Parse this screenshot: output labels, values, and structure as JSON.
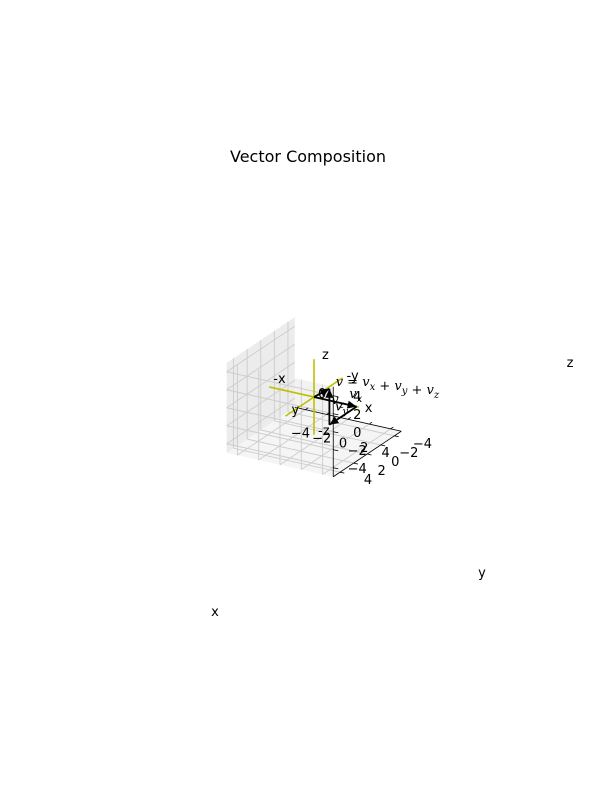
{
  "chart_data": {
    "type": "3d-vector",
    "title": "Vector Composition",
    "xlabel": "x",
    "ylabel": "y",
    "zlabel": "z",
    "xlim": [
      -5,
      5
    ],
    "ylim": [
      -5,
      5
    ],
    "zlim": [
      -5,
      5
    ],
    "xticks": [
      "−4",
      "−2",
      "0",
      "2",
      "4"
    ],
    "yticks": [
      "−4",
      "−2",
      "0",
      "2",
      "4"
    ],
    "zticks": [
      "−4",
      "−2",
      "0",
      "2",
      "4"
    ],
    "grid": true,
    "axis_lines_color": "#bfbf00",
    "vector_color": "#000000",
    "axis_endpoint_labels": [
      "x",
      "-x",
      "y",
      "-y",
      "z",
      "-z"
    ],
    "origin_label": "0",
    "vectors": [
      {
        "label": "v_x",
        "from": [
          0,
          0,
          0
        ],
        "to": [
          4,
          0,
          0
        ]
      },
      {
        "label": "v_y",
        "from": [
          4,
          0,
          0
        ],
        "to": [
          4,
          4,
          0
        ]
      },
      {
        "label": "v_z",
        "from": [
          4,
          4,
          0
        ],
        "to": [
          4,
          4,
          4
        ]
      },
      {
        "label": "v = v_x + v_y + v_z",
        "from": [
          0,
          0,
          0
        ],
        "to": [
          4,
          4,
          4
        ]
      }
    ]
  }
}
